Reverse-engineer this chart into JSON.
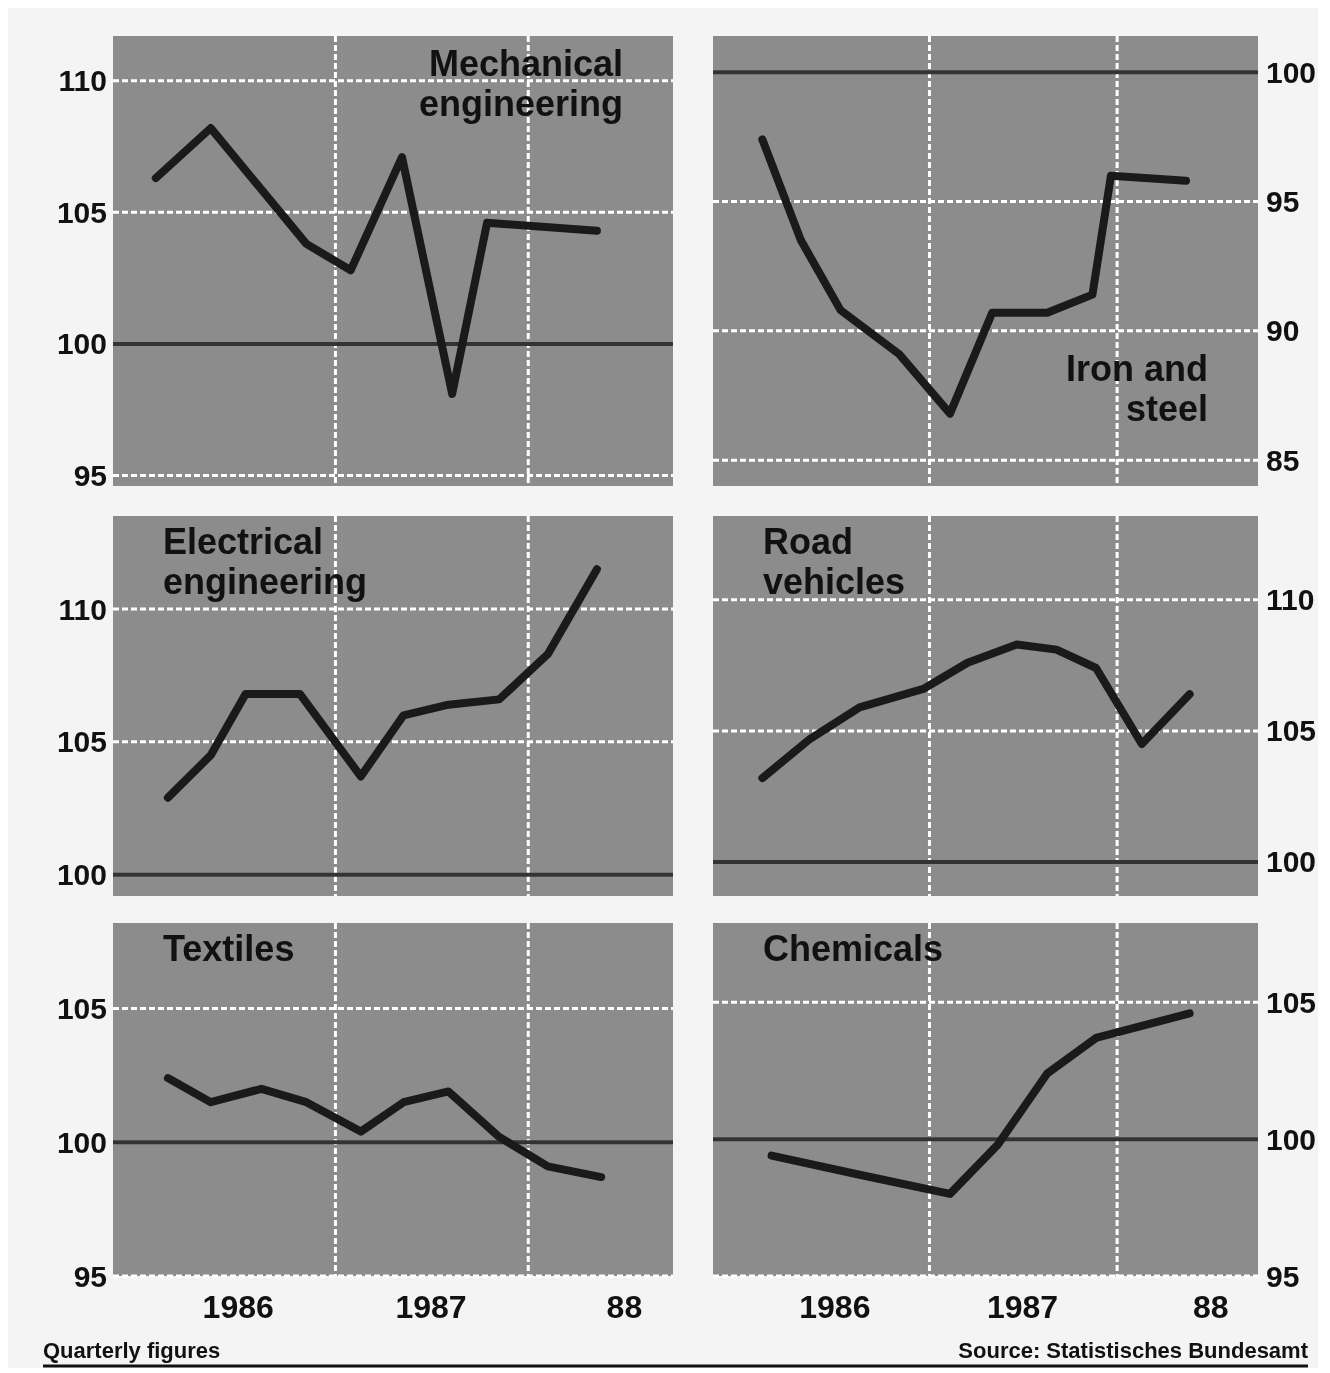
{
  "chart_data": [
    {
      "type": "line",
      "title": "Mechanical engineering",
      "series": [
        {
          "color": "#1a1a1a",
          "x": [
            "1986-01-26",
            "1986-05-10",
            "1986-11-07",
            "1987-01-30",
            "1987-05-07",
            "1987-08-10",
            "1987-10-15",
            "1988-05-10"
          ],
          "values": [
            106.3,
            108.2,
            103.8,
            102.8,
            107.1,
            98.1,
            104.6,
            104.3
          ]
        }
      ],
      "xlim": [
        "1985-11-06",
        "1988-10-01"
      ],
      "xticks": [
        {
          "value": "1987",
          "label": null
        },
        {
          "value": "1988",
          "label": null
        }
      ],
      "ylim": [
        94.6,
        111.7
      ],
      "yticks": [
        95,
        100,
        105,
        110
      ],
      "grid": true,
      "tick_labels": "y",
      "ref_lines": [
        {
          "axis": "y",
          "value": 100,
          "color": "#333333"
        }
      ]
    },
    {
      "type": "line",
      "title": "Iron and steel",
      "series": [
        {
          "color": "#1a1a1a",
          "x": [
            "1986-02-10",
            "1986-04-26",
            "1986-07-12",
            "1986-11-03",
            "1987-02-10",
            "1987-05-03",
            "1987-08-18",
            "1987-11-14",
            "1987-12-20",
            "1988-05-14"
          ],
          "values": [
            97.4,
            93.5,
            90.8,
            89.1,
            86.8,
            90.7,
            90.7,
            91.4,
            96.0,
            95.8
          ]
        }
      ],
      "xlim": [
        "1985-11-06",
        "1988-10-01"
      ],
      "xticks": [
        {
          "value": "1987",
          "label": null
        },
        {
          "value": "1988",
          "label": null
        }
      ],
      "ylim": [
        84.0,
        101.4
      ],
      "yticks": [
        85,
        90,
        95,
        100
      ],
      "grid": true,
      "tick_labels": "y",
      "ref_lines": [
        {
          "axis": "y",
          "value": 100,
          "color": "#333333"
        }
      ]
    },
    {
      "type": "line",
      "title": "Electrical engineering",
      "series": [
        {
          "color": "#1a1a1a",
          "x": [
            "1986-02-18",
            "1986-05-10",
            "1986-07-15",
            "1986-10-26",
            "1987-02-18",
            "1987-05-10",
            "1987-08-03",
            "1987-11-07",
            "1988-02-07",
            "1988-05-10"
          ],
          "values": [
            102.9,
            104.5,
            106.8,
            106.8,
            103.7,
            106.0,
            106.4,
            106.6,
            108.3,
            111.5
          ]
        }
      ],
      "xlim": [
        "1985-11-06",
        "1988-10-01"
      ],
      "xticks": [
        {
          "value": "1987",
          "label": null
        },
        {
          "value": "1988",
          "label": null
        }
      ],
      "ylim": [
        99.2,
        113.5
      ],
      "yticks": [
        100,
        105,
        110
      ],
      "grid": true,
      "tick_labels": "y",
      "ref_lines": [
        {
          "axis": "y",
          "value": 100,
          "color": "#333333"
        }
      ]
    },
    {
      "type": "line",
      "title": "Road vehicles",
      "series": [
        {
          "color": "#1a1a1a",
          "x": [
            "1986-02-10",
            "1986-05-14",
            "1986-08-18",
            "1986-12-20",
            "1987-03-16",
            "1987-06-20",
            "1987-09-05",
            "1987-11-21",
            "1988-02-18",
            "1988-05-21"
          ],
          "values": [
            103.2,
            104.7,
            105.9,
            106.6,
            107.6,
            108.3,
            108.1,
            107.4,
            104.5,
            106.4
          ]
        }
      ],
      "xlim": [
        "1985-11-06",
        "1988-10-01"
      ],
      "xticks": [
        {
          "value": "1987",
          "label": null
        },
        {
          "value": "1988",
          "label": null
        }
      ],
      "ylim": [
        98.7,
        113.2
      ],
      "yticks": [
        100,
        105,
        110
      ],
      "grid": true,
      "tick_labels": "y",
      "ref_lines": [
        {
          "axis": "y",
          "value": 100,
          "color": "#333333"
        }
      ]
    },
    {
      "type": "line",
      "title": "Textiles",
      "series": [
        {
          "color": "#1a1a1a",
          "x": [
            "1986-02-18",
            "1986-05-10",
            "1986-08-14",
            "1986-11-07",
            "1987-02-18",
            "1987-05-10",
            "1987-08-03",
            "1987-11-07",
            "1988-02-07",
            "1988-05-18"
          ],
          "values": [
            102.4,
            101.5,
            102.0,
            101.5,
            100.4,
            101.5,
            101.9,
            100.2,
            99.1,
            98.7
          ]
        }
      ],
      "xlim": [
        "1985-11-06",
        "1988-10-01"
      ],
      "xticks": [
        {
          "value": "1986-07-01",
          "label": "1986"
        },
        {
          "value": "1987",
          "label": null
        },
        {
          "value": "1987-07-01",
          "label": "1987"
        },
        {
          "value": "1988",
          "label": null
        },
        {
          "value": "1988-07-01",
          "label": "88"
        }
      ],
      "ylim": [
        95.0,
        108.2
      ],
      "yticks": [
        95,
        100,
        105
      ],
      "grid": true,
      "ref_lines": [
        {
          "axis": "y",
          "value": 100,
          "color": "#333333"
        }
      ],
      "annotations": [
        "Quarterly figures"
      ]
    },
    {
      "type": "line",
      "title": "Chemicals",
      "series": [
        {
          "color": "#1a1a1a",
          "x": [
            "1986-02-28",
            "1986-08-18",
            "1987-02-10",
            "1987-05-14",
            "1987-08-18",
            "1987-11-21",
            "1988-05-21"
          ],
          "values": [
            99.4,
            98.7,
            98.0,
            99.8,
            102.4,
            103.7,
            104.6
          ]
        }
      ],
      "xlim": [
        "1985-11-06",
        "1988-10-01"
      ],
      "xticks": [
        {
          "value": "1986-07-01",
          "label": "1986"
        },
        {
          "value": "1987",
          "label": null
        },
        {
          "value": "1987-07-01",
          "label": "1987"
        },
        {
          "value": "1988",
          "label": null
        },
        {
          "value": "1988-07-01",
          "label": "88"
        }
      ],
      "ylim": [
        95.0,
        107.9
      ],
      "yticks": [
        95,
        100,
        105
      ],
      "grid": true,
      "ref_lines": [
        {
          "axis": "y",
          "value": 100,
          "color": "#333333"
        }
      ],
      "annotations": [
        "Source: Statistisches Bundesamt"
      ]
    }
  ]
}
